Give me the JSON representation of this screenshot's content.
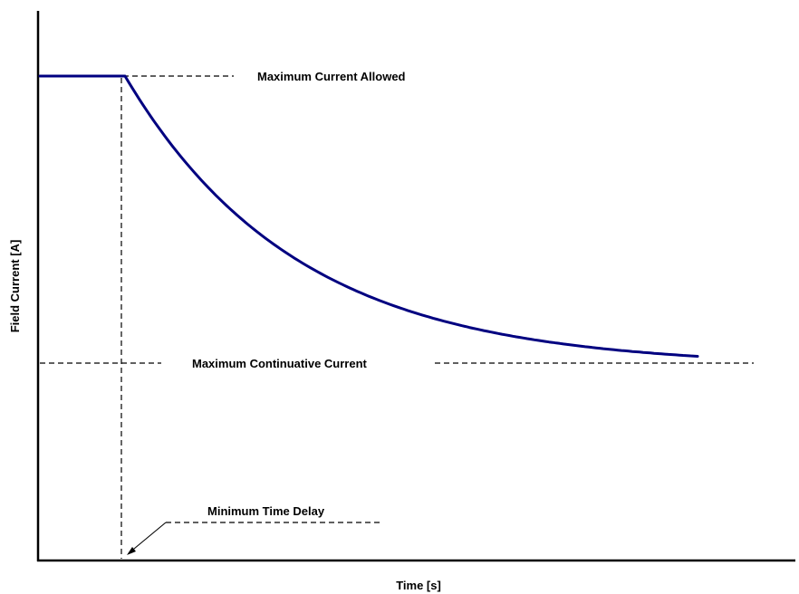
{
  "chart_data": {
    "type": "line",
    "title": "",
    "xlabel": "Time [s]",
    "ylabel": "Field Current [A]",
    "grid": false,
    "annotations": {
      "max_allowed": "Maximum Current Allowed",
      "max_continuative": "Maximum Continuative Current",
      "min_delay": "Minimum Time Delay"
    },
    "colors": {
      "curve": "#000080",
      "axes": "#000000"
    }
  }
}
